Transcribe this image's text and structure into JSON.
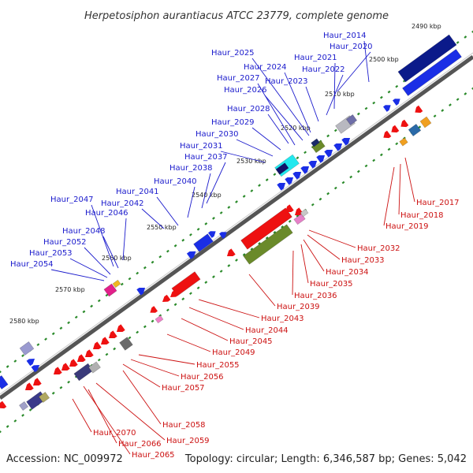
{
  "title": "Herpetosiphon aurantiacus ATCC 23779, complete genome",
  "footer": {
    "accession": "Accession: NC_009972",
    "summary": "Topology: circular; Length: 6,346,587 bp; Genes: 5,042"
  },
  "colors": {
    "forward_label": "#1a1acc",
    "reverse_label": "#cc1111",
    "backbone": "#555555",
    "tick": "#2a8a2a"
  },
  "ticks": [
    "2490 kbp",
    "2500 kbp",
    "2510 kbp",
    "2520 kbp",
    "2530 kbp",
    "2540 kbp",
    "2550 kbp",
    "2560 kbp",
    "2570 kbp",
    "2580 kbp"
  ],
  "forward_genes": [
    "Haur_2014",
    "Haur_2020",
    "Haur_2021",
    "Haur_2022",
    "Haur_2023",
    "Haur_2024",
    "Haur_2025",
    "Haur_2026",
    "Haur_2027",
    "Haur_2028",
    "Haur_2029",
    "Haur_2030",
    "Haur_2031",
    "Haur_2037",
    "Haur_2038",
    "Haur_2040",
    "Haur_2041",
    "Haur_2042",
    "Haur_2046",
    "Haur_2047",
    "Haur_2048",
    "Haur_2052",
    "Haur_2053",
    "Haur_2054"
  ],
  "reverse_genes": [
    "Haur_2017",
    "Haur_2018",
    "Haur_2019",
    "Haur_2032",
    "Haur_2033",
    "Haur_2034",
    "Haur_2035",
    "Haur_2036",
    "Haur_2039",
    "Haur_2043",
    "Haur_2044",
    "Haur_2045",
    "Haur_2049",
    "Haur_2055",
    "Haur_2056",
    "Haur_2057",
    "Haur_2058",
    "Haur_2059",
    "Haur_2065",
    "Haur_2066",
    "Haur_2070"
  ]
}
